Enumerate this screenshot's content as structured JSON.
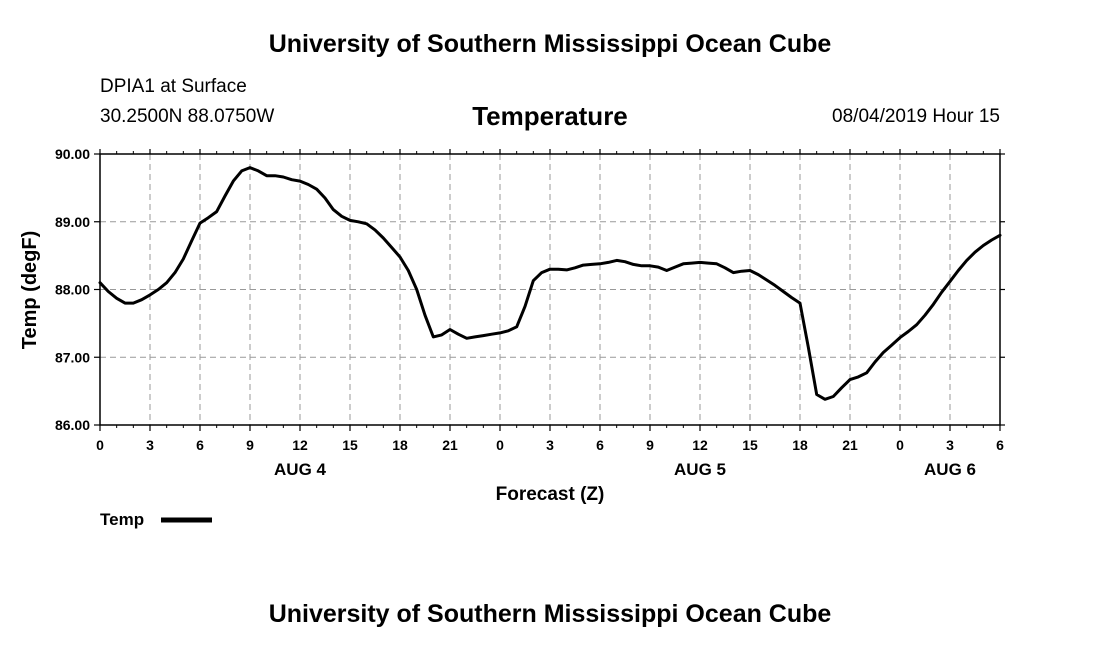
{
  "header": {
    "title": "University of Southern Mississippi Ocean Cube"
  },
  "footer": {
    "title": "University of Southern Mississippi Ocean Cube"
  },
  "station": {
    "name": "DPIA1 at Surface",
    "coords": "30.2500N 88.0750W",
    "datetime": "08/04/2019 Hour 15"
  },
  "colors": {
    "line": "#000000",
    "grid": "#999999",
    "background": "#ffffff"
  },
  "chart_data": {
    "type": "line",
    "title": "Temperature",
    "xlabel": "Forecast (Z)",
    "ylabel": "Temp (degF)",
    "xlim": [
      0,
      54
    ],
    "ylim": [
      86.0,
      90.0
    ],
    "x_tick_step_hours": 3,
    "x_tick_labels": [
      "0",
      "3",
      "6",
      "9",
      "12",
      "15",
      "18",
      "21",
      "0",
      "3",
      "6",
      "9",
      "12",
      "15",
      "18",
      "21",
      "0",
      "3",
      "6"
    ],
    "y_ticks": [
      86.0,
      87.0,
      88.0,
      89.0,
      90.0
    ],
    "y_tick_labels": [
      "86.00",
      "87.00",
      "88.00",
      "89.00",
      "90.00"
    ],
    "date_labels": [
      {
        "label": "AUG 4",
        "hour": 12
      },
      {
        "label": "AUG 5",
        "hour": 36
      },
      {
        "label": "AUG 6",
        "hour": 51
      }
    ],
    "grid": true,
    "legend": {
      "placement": "bottom-left",
      "entries": [
        "Temp"
      ]
    },
    "series": [
      {
        "name": "Temp",
        "x": [
          0,
          0.5,
          1,
          1.5,
          2,
          2.5,
          3,
          3.5,
          4,
          4.5,
          5,
          5.5,
          6,
          6.5,
          7,
          7.5,
          8,
          8.5,
          9,
          9.5,
          10,
          10.5,
          11,
          11.5,
          12,
          12.5,
          13,
          13.5,
          14,
          14.5,
          15,
          15.5,
          16,
          16.5,
          17,
          17.5,
          18,
          18.5,
          19,
          19.5,
          20,
          20.5,
          21,
          21.5,
          22,
          22.5,
          23,
          23.5,
          24,
          24.5,
          25,
          25.5,
          26,
          26.5,
          27,
          27.5,
          28,
          28.5,
          29,
          29.5,
          30,
          30.5,
          31,
          31.5,
          32,
          32.5,
          33,
          33.5,
          34,
          34.5,
          35,
          35.5,
          36,
          36.5,
          37,
          37.5,
          38,
          38.5,
          39,
          39.5,
          40,
          40.5,
          41,
          41.5,
          42,
          42.5,
          43,
          43.5,
          44,
          44.5,
          45,
          45.5,
          46,
          46.5,
          47,
          47.5,
          48,
          48.5,
          49,
          49.5,
          50,
          50.5,
          51,
          51.5,
          52,
          52.5,
          53,
          53.5,
          54
        ],
        "values": [
          88.1,
          87.97,
          87.87,
          87.8,
          87.8,
          87.85,
          87.92,
          88.0,
          88.1,
          88.25,
          88.45,
          88.72,
          88.98,
          89.06,
          89.15,
          89.38,
          89.6,
          89.75,
          89.8,
          89.75,
          89.68,
          89.68,
          89.66,
          89.62,
          89.6,
          89.55,
          89.48,
          89.35,
          89.18,
          89.08,
          89.02,
          89.0,
          88.97,
          88.88,
          88.76,
          88.62,
          88.48,
          88.28,
          88.0,
          87.62,
          87.3,
          87.33,
          87.41,
          87.34,
          87.28,
          87.3,
          87.32,
          87.34,
          87.36,
          87.39,
          87.45,
          87.75,
          88.13,
          88.25,
          88.3,
          88.3,
          88.29,
          88.32,
          88.36,
          88.37,
          88.38,
          88.4,
          88.43,
          88.41,
          88.37,
          88.35,
          88.35,
          88.33,
          88.28,
          88.33,
          88.38,
          88.39,
          88.4,
          88.39,
          88.38,
          88.32,
          88.25,
          88.27,
          88.28,
          88.22,
          88.14,
          88.06,
          87.97,
          87.88,
          87.8,
          87.15,
          86.45,
          86.38,
          86.42,
          86.55,
          86.67,
          86.71,
          86.77,
          86.93,
          87.07,
          87.18,
          87.29,
          87.38,
          87.48,
          87.62,
          87.78,
          87.96,
          88.12,
          88.28,
          88.43,
          88.55,
          88.65,
          88.73,
          88.8
        ]
      }
    ]
  }
}
